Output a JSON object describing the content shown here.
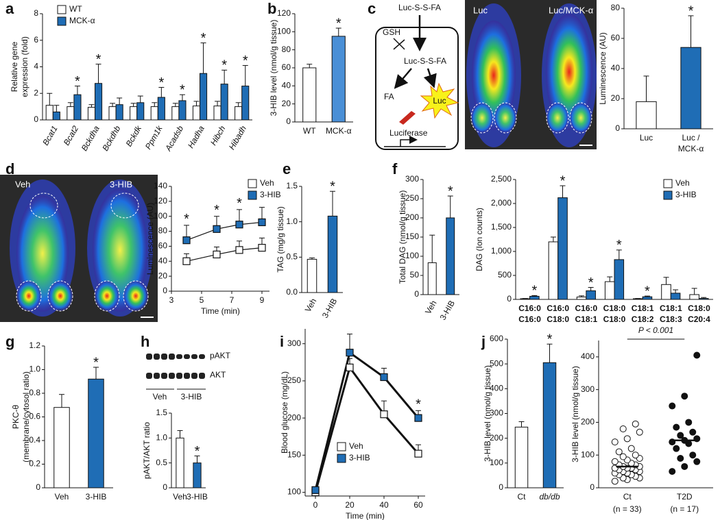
{
  "chart_data": [
    {
      "type": "bar",
      "panel": "a",
      "ylabel": [
        "Relative gene",
        "expression (fold)"
      ],
      "categories": [
        "Bcat1",
        "Bcat2",
        "Bckdha",
        "Bckdhb",
        "Bckdk",
        "Ppm1k",
        "Acadsb",
        "Hadha",
        "Hibch",
        "Hibadh"
      ],
      "series": [
        {
          "name": "WT",
          "color": "#ffffff",
          "values": [
            1.1,
            1.0,
            0.95,
            1.0,
            1.0,
            1.0,
            1.0,
            1.05,
            1.05,
            1.0
          ],
          "errors": [
            0.9,
            0.3,
            0.2,
            0.25,
            0.25,
            0.3,
            0.25,
            0.35,
            0.35,
            0.3
          ]
        },
        {
          "name": "MCK-α",
          "color": "#1f6db5",
          "values": [
            0.6,
            1.9,
            2.75,
            1.15,
            1.3,
            1.7,
            1.45,
            3.5,
            2.7,
            2.55
          ],
          "errors": [
            0.5,
            0.65,
            1.45,
            0.5,
            0.5,
            0.75,
            0.45,
            2.3,
            1.05,
            1.55
          ]
        }
      ],
      "significance": [
        null,
        "*",
        "*",
        null,
        null,
        "*",
        "*",
        "*",
        "*",
        "*"
      ],
      "ylim": [
        0,
        8
      ],
      "yticks": [
        0,
        2,
        4,
        6,
        8
      ]
    },
    {
      "type": "bar",
      "panel": "b",
      "ylabel": "3-HIB level (nmol/g tissue)",
      "categories": [
        "WT",
        "MCK-α"
      ],
      "values": [
        60,
        95
      ],
      "errors": [
        4,
        9
      ],
      "colors": [
        "#ffffff",
        "#4a8fd6"
      ],
      "significance": [
        null,
        "*"
      ],
      "ylim": [
        0,
        120
      ],
      "yticks": [
        0,
        20,
        40,
        60,
        80,
        100,
        120
      ]
    },
    {
      "type": "bar",
      "panel": "c",
      "ylabel": "Luminescence (AU)",
      "categories": [
        "Luc",
        [
          "Luc /",
          "MCK-α"
        ]
      ],
      "values": [
        18,
        54
      ],
      "errors": [
        17,
        21
      ],
      "colors": [
        "#ffffff",
        "#1f6db5"
      ],
      "significance": [
        null,
        "*"
      ],
      "ylim": [
        0,
        80
      ],
      "yticks": [
        0,
        20,
        40,
        60,
        80
      ]
    },
    {
      "type": "line",
      "panel": "d",
      "ylabel": "Luminescence (AU)",
      "xlabel": "Time (min)",
      "x": [
        4,
        6,
        7.5,
        9
      ],
      "series": [
        {
          "name": "Veh",
          "color": "#ffffff",
          "values": [
            40,
            49,
            55,
            58
          ],
          "errors": [
            10,
            10,
            12,
            13
          ]
        },
        {
          "name": "3-HIB",
          "color": "#1f6db5",
          "values": [
            68,
            83,
            89,
            92
          ],
          "errors": [
            20,
            17,
            20,
            20
          ]
        }
      ],
      "significance": [
        "*",
        "*",
        "*",
        null
      ],
      "xlim": [
        3,
        9.5
      ],
      "xticks": [
        3,
        5,
        7,
        9
      ],
      "ylim": [
        0,
        140
      ],
      "yticks": [
        0,
        20,
        40,
        60,
        80,
        100,
        120,
        140
      ]
    },
    {
      "type": "bar",
      "panel": "e",
      "ylabel": "TAG  (mg/g tissue)",
      "categories": [
        "Veh",
        "3-HIB"
      ],
      "values": [
        0.47,
        1.08
      ],
      "errors": [
        0.02,
        0.35
      ],
      "colors": [
        "#ffffff",
        "#1f6db5"
      ],
      "significance": [
        null,
        "*"
      ],
      "ylim": [
        0,
        1.5
      ],
      "yticks": [
        {
          "value": 0,
          "label": "0.0"
        },
        0.5,
        {
          "value": 1,
          "label": "1.0"
        },
        1.5
      ]
    },
    {
      "type": "bar",
      "panel": "f",
      "ylabel": "Total DAG (nmol/g tissue)",
      "categories": [
        "Veh",
        "3-HIB"
      ],
      "values": [
        83,
        200
      ],
      "errors": [
        72,
        57
      ],
      "colors": [
        "#ffffff",
        "#1f6db5"
      ],
      "significance": [
        null,
        "*"
      ],
      "ylim": [
        0,
        300
      ],
      "yticks": [
        0,
        50,
        100,
        150,
        200,
        250,
        300
      ]
    },
    {
      "type": "bar",
      "ylabel": "DAG (Ion counts)",
      "categories": [
        [
          "C16:0",
          "C16:0"
        ],
        [
          "C16:0",
          "C18:0"
        ],
        [
          "C16:0",
          "C18:1"
        ],
        [
          "C18:0",
          "C18:0"
        ],
        [
          "C18:1",
          "C18:2"
        ],
        [
          "C18:1",
          "C18:3"
        ],
        [
          "C18:0",
          "C20:4"
        ]
      ],
      "series": [
        {
          "name": "Veh",
          "color": "#ffffff",
          "values": [
            15,
            1200,
            50,
            370,
            15,
            310,
            100
          ],
          "errors": [
            5,
            100,
            25,
            100,
            5,
            150,
            130
          ]
        },
        {
          "name": "3-HIB",
          "color": "#1f6db5",
          "values": [
            65,
            2120,
            180,
            830,
            55,
            130,
            20
          ],
          "errors": [
            15,
            250,
            70,
            200,
            15,
            70,
            20
          ]
        }
      ],
      "significance": [
        "*",
        "*",
        "*",
        "*",
        "*",
        null,
        null
      ],
      "ylim": [
        0,
        2500
      ],
      "yticks": [
        0,
        500,
        {
          "value": 1000,
          "label": "1,000"
        },
        {
          "value": 1500,
          "label": "1,500"
        },
        {
          "value": 2000,
          "label": "2,000"
        },
        {
          "value": 2500,
          "label": "2,500"
        }
      ]
    },
    {
      "type": "bar",
      "panel": "g",
      "ylabel": [
        "PKC-θ",
        "(membrane/cytosol ratio)"
      ],
      "categories": [
        "Veh",
        "3-HIB"
      ],
      "values": [
        0.68,
        0.92
      ],
      "errors": [
        0.11,
        0.1
      ],
      "colors": [
        "#ffffff",
        "#1f6db5"
      ],
      "significance": [
        null,
        "*"
      ],
      "ylim": [
        0,
        1.2
      ],
      "yticks": [
        0,
        0.2,
        0.4,
        0.6,
        0.8,
        {
          "value": 1,
          "label": "1.0"
        },
        1.2
      ]
    },
    {
      "type": "bar",
      "panel": "h",
      "ylabel": "pAKT/AKT ratio",
      "categories": [
        "Veh",
        "3-HIB"
      ],
      "values": [
        1.0,
        0.5
      ],
      "errors": [
        0.15,
        0.14
      ],
      "colors": [
        "#ffffff",
        "#1f6db5"
      ],
      "significance": [
        null,
        "*"
      ],
      "ylim": [
        0,
        1.5
      ],
      "yticks": [
        0,
        0.5,
        {
          "value": 1,
          "label": "1.0"
        },
        1.5
      ]
    },
    {
      "type": "line",
      "panel": "i",
      "ylabel": "Blood glucose (mg/dL)",
      "xlabel": "Time (min)",
      "x": [
        0,
        20,
        40,
        60
      ],
      "series": [
        {
          "name": "Veh",
          "color": "#ffffff",
          "values": [
            100,
            268,
            205,
            152
          ],
          "errors": [
            3,
            12,
            18,
            12
          ]
        },
        {
          "name": "3-HIB",
          "color": "#1f6db5",
          "values": [
            103,
            288,
            255,
            200
          ],
          "errors": [
            3,
            25,
            12,
            10
          ]
        }
      ],
      "significance": [
        null,
        null,
        null,
        "*"
      ],
      "xlim": [
        -6,
        64
      ],
      "xticks": [
        0,
        20,
        40,
        60
      ],
      "ylim": [
        95,
        320
      ],
      "yticks": [
        100,
        150,
        200,
        250,
        300
      ]
    },
    {
      "type": "bar",
      "panel": "j",
      "ylabel": "3-HIB level (nmol/g tissue)",
      "categories": [
        "Ct",
        "db/db"
      ],
      "values": [
        245,
        505
      ],
      "errors": [
        22,
        75
      ],
      "colors": [
        "#ffffff",
        "#1f6db5"
      ],
      "significance": [
        null,
        "*"
      ],
      "ylim": [
        0,
        600
      ],
      "yticks": [
        0,
        100,
        200,
        300,
        400,
        500,
        600
      ]
    },
    {
      "type": "strip",
      "ylabel": "3-HIB level (nmol/g tissue)",
      "annotation": "P < 0.001",
      "categories": [
        "Ct",
        "T2D"
      ],
      "notes": [
        "(n = 33)",
        "(n = 17)"
      ],
      "values": [
        [
          20,
          25,
          30,
          30,
          35,
          40,
          40,
          45,
          45,
          50,
          50,
          55,
          55,
          60,
          60,
          60,
          65,
          65,
          70,
          70,
          75,
          80,
          85,
          90,
          95,
          100,
          110,
          120,
          140,
          150,
          170,
          180,
          195
        ],
        [
          50,
          65,
          80,
          90,
          100,
          120,
          135,
          140,
          145,
          150,
          160,
          170,
          185,
          200,
          250,
          280,
          405
        ]
      ],
      "medians": [
        65,
        145
      ],
      "fills": [
        "#ffffff",
        "#111111"
      ],
      "ylim": [
        0,
        450
      ],
      "yticks": [
        0,
        100,
        200,
        300,
        400
      ]
    }
  ],
  "figure": {
    "diagram_c": {
      "substrate": "Luc-S-S-FA",
      "cofactor": "GSH",
      "intermediate": "Luc-S-S-FA",
      "product": "FA",
      "light": "Luc",
      "enzyme": "Luciferase"
    },
    "image_c": {
      "labels": [
        "Luc",
        "Luc/MCK-α"
      ]
    },
    "image_d": {
      "labels": [
        "Veh",
        "3-HIB"
      ]
    },
    "blot_h": {
      "bands": [
        "pAKT",
        "AKT"
      ],
      "groups": [
        "Veh",
        "3-HIB"
      ]
    }
  }
}
